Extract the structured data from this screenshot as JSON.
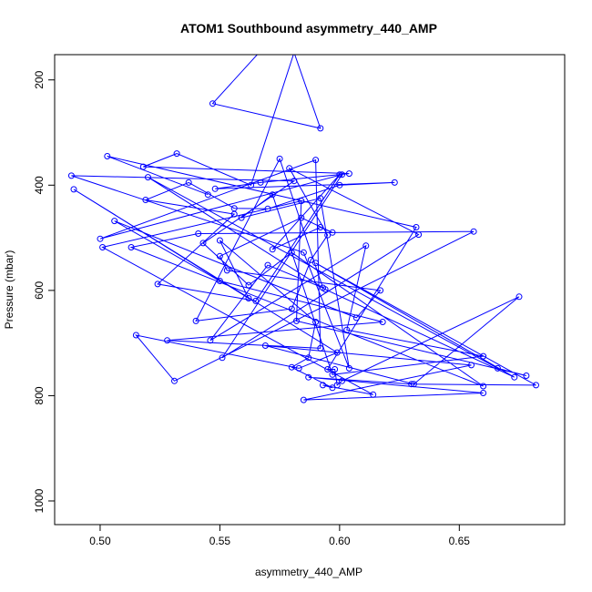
{
  "chart_data": {
    "type": "line",
    "title": "ATOM1 Southbound asymmetry_440_AMP",
    "xlabel": "asymmetry_440_AMP",
    "ylabel": "Pressure (mbar)",
    "xlim": [
      0.481,
      0.694
    ],
    "ylim": [
      1045,
      152
    ],
    "y_reversed": true,
    "x_ticks": [
      0.5,
      0.55,
      0.6,
      0.65
    ],
    "x_tick_labels": [
      "0.50",
      "0.55",
      "0.60",
      "0.65"
    ],
    "y_ticks": [
      200,
      400,
      600,
      800,
      1000
    ],
    "y_tick_labels": [
      "200",
      "400",
      "600",
      "800",
      "1000"
    ],
    "grid": false,
    "series_color": "#0000ff",
    "series": [
      {
        "x": [
          0.566,
          0.547,
          0.592,
          0.581,
          0.563,
          0.532,
          0.518,
          0.604,
          0.567,
          0.548,
          0.623,
          0.6,
          0.57,
          0.556,
          0.537,
          0.519,
          0.556,
          0.524,
          0.565,
          0.6,
          0.572,
          0.592,
          0.597,
          0.584,
          0.55,
          0.553,
          0.617,
          0.607,
          0.506,
          0.55,
          0.618,
          0.528,
          0.592,
          0.59,
          0.5,
          0.601,
          0.551,
          0.633,
          0.579,
          0.595,
          0.588,
          0.58,
          0.54,
          0.575,
          0.593,
          0.57,
          0.546,
          0.611,
          0.603,
          0.66,
          0.597,
          0.572,
          0.559,
          0.592,
          0.604,
          0.585,
          0.488,
          0.581,
          0.543,
          0.562,
          0.58,
          0.66,
          0.513,
          0.541,
          0.656,
          0.531,
          0.515,
          0.583,
          0.599,
          0.489,
          0.562,
          0.55,
          0.59,
          0.587,
          0.58,
          0.597,
          0.593,
          0.614,
          0.501,
          0.584,
          0.582,
          0.678,
          0.666,
          0.52,
          0.594,
          0.673,
          0.59,
          0.682,
          0.63,
          0.587,
          0.66,
          0.585,
          0.655,
          0.569,
          0.631,
          0.675,
          0.601,
          0.599,
          0.598,
          0.595,
          0.632,
          0.503,
          0.545
        ],
        "y": [
          150,
          245,
          292,
          148,
          400,
          340,
          365,
          378,
          395,
          407,
          395,
          400,
          445,
          444,
          395,
          428,
          455,
          588,
          620,
          380,
          522,
          480,
          490,
          462,
          535,
          562,
          600,
          652,
          468,
          582,
          660,
          695,
          710,
          352,
          502,
          380,
          728,
          494,
          368,
          495,
          542,
          635,
          658,
          350,
          595,
          552,
          695,
          515,
          675,
          725,
          760,
          418,
          462,
          425,
          748,
          528,
          382,
          392,
          510,
          590,
          528,
          782,
          518,
          492,
          488,
          772,
          685,
          748,
          718,
          408,
          615,
          505,
          660,
          728,
          746,
          785,
          780,
          798,
          518,
          430,
          658,
          762,
          748,
          385,
          598,
          765,
          548,
          780,
          778,
          765,
          795,
          808,
          742,
          705,
          778,
          612,
          772,
          780,
          750,
          750,
          480,
          345,
          418
        ]
      }
    ]
  }
}
